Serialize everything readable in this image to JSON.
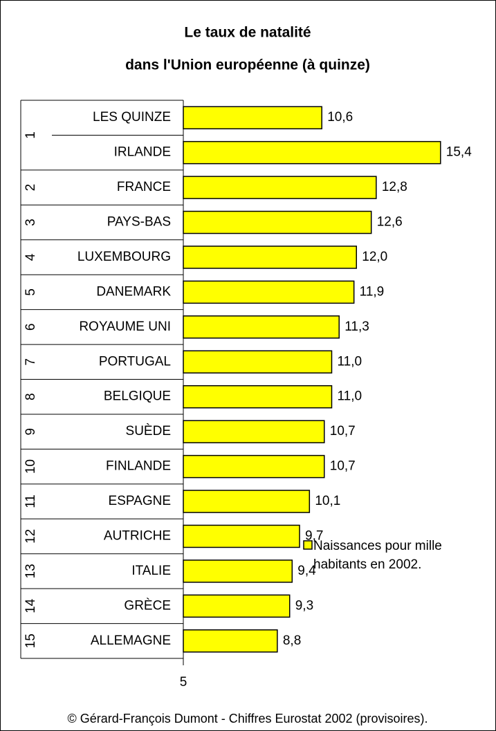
{
  "chart_data": {
    "type": "bar",
    "orientation": "horizontal",
    "title": [
      "Le taux de natalité",
      "dans l'Union européenne (à quinze)"
    ],
    "ranks": [
      1,
      2,
      3,
      4,
      5,
      6,
      7,
      8,
      9,
      10,
      11,
      12,
      13,
      14,
      15
    ],
    "categories": [
      "LES QUINZE",
      "IRLANDE",
      "FRANCE",
      "PAYS-BAS",
      "LUXEMBOURG",
      "DANEMARK",
      "ROYAUME UNI",
      "PORTUGAL",
      "BELGIQUE",
      "SUÈDE",
      "FINLANDE",
      "ESPAGNE",
      "AUTRICHE",
      "ITALIE",
      "GRÈCE",
      "ALLEMAGNE"
    ],
    "series": [
      {
        "name": "Naissances pour mille habitants en 2002.",
        "color": "#ffff00",
        "values": [
          10.6,
          15.4,
          12.8,
          12.6,
          12.0,
          11.9,
          11.3,
          11.0,
          11.0,
          10.7,
          10.7,
          10.1,
          9.7,
          9.4,
          9.3,
          8.8
        ],
        "value_labels": [
          "10,6",
          "15,4",
          "12,8",
          "12,6",
          "12,0",
          "11,9",
          "11,3",
          "11,0",
          "11,0",
          "10,7",
          "10,7",
          "10,1",
          "9,7",
          "9,4",
          "9,3",
          "8,8"
        ]
      }
    ],
    "xlim": [
      5,
      17
    ],
    "xticks": [
      5
    ],
    "legend": "right",
    "source": "© Gérard-François Dumont - Chiffres Eurostat 2002 (provisoires)."
  }
}
